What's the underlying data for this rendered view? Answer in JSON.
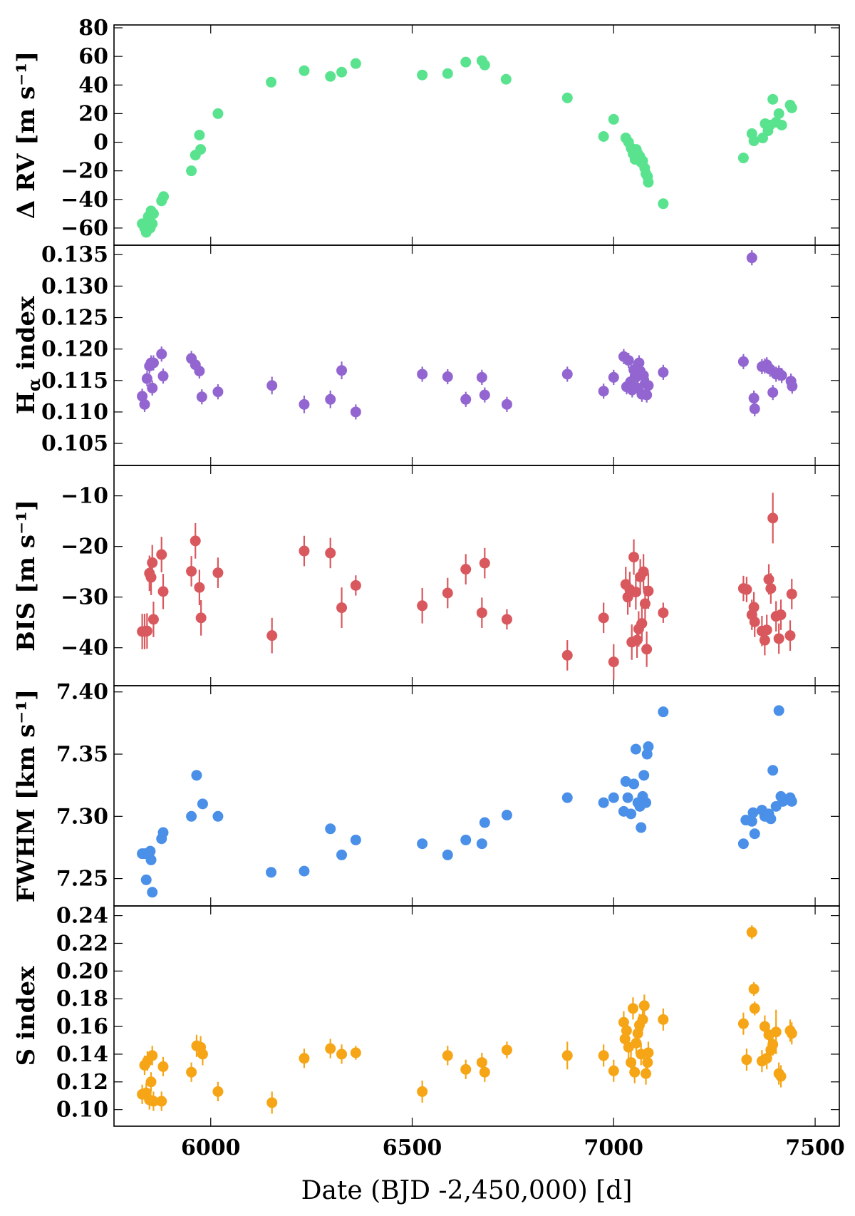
{
  "figure": {
    "xlabel": "Date (BJD -2,450,000) [d]",
    "xlim": [
      5760,
      7560
    ],
    "xticks": [
      6000,
      6500,
      7000,
      7500
    ]
  },
  "chart_data": [
    {
      "type": "scatter",
      "name": "rv",
      "ylabel": "Δ RV [m s⁻¹]",
      "ylim": [
        -72,
        82
      ],
      "yticks": [
        -60,
        -40,
        -20,
        0,
        20,
        40,
        60,
        80
      ],
      "ytick_labels": [
        "−60",
        "−40",
        "−20",
        "0",
        "20",
        "40",
        "60",
        "80"
      ],
      "color": "#5ae38f",
      "error_bars": false,
      "x": [
        5830,
        5836,
        5840,
        5843,
        5845,
        5848,
        5850,
        5852,
        5855,
        5858,
        5878,
        5883,
        5952,
        5962,
        5972,
        5975,
        6018,
        6150,
        6232,
        6297,
        6325,
        6360,
        6525,
        6588,
        6633,
        6673,
        6680,
        6733,
        6885,
        6975,
        7000,
        7030,
        7037,
        7043,
        7048,
        7053,
        7056,
        7060,
        7065,
        7068,
        7072,
        7077,
        7080,
        7084,
        7086,
        7123,
        7322,
        7343,
        7348,
        7370,
        7376,
        7383,
        7388,
        7395,
        7403,
        7410,
        7417,
        7438,
        7442
      ],
      "y": [
        -57,
        -60,
        -63,
        -58,
        -52,
        -55,
        -60,
        -48,
        -57,
        -50,
        -41,
        -38,
        -20,
        -9,
        5,
        -5,
        20,
        42,
        50,
        46,
        49,
        55,
        47,
        48,
        56,
        57,
        54,
        44,
        31,
        4,
        16,
        3,
        0,
        -4,
        -8,
        -12,
        -5,
        -8,
        -10,
        -14,
        -13,
        -18,
        -22,
        -24,
        -28,
        -43,
        -11,
        6,
        1,
        3,
        13,
        8,
        12,
        30,
        14,
        20,
        12,
        26,
        24
      ],
      "yerr": []
    },
    {
      "type": "scatter",
      "name": "halpha",
      "ylabel_main": "H",
      "ylabel_sub": "α",
      "ylabel_rest": " index",
      "ylim": [
        0.1015,
        0.1365
      ],
      "yticks": [
        0.105,
        0.11,
        0.115,
        0.12,
        0.125,
        0.13,
        0.135
      ],
      "ytick_labels": [
        "0.105",
        "0.110",
        "0.115",
        "0.120",
        "0.125",
        "0.130",
        "0.135"
      ],
      "color": "#9365d0",
      "error_bars": true,
      "x": [
        5830,
        5836,
        5842,
        5848,
        5852,
        5855,
        5858,
        5878,
        5882,
        5952,
        5962,
        5972,
        5978,
        6018,
        6152,
        6232,
        6297,
        6325,
        6360,
        6525,
        6588,
        6633,
        6673,
        6680,
        6735,
        6885,
        6975,
        7000,
        7025,
        7032,
        7037,
        7042,
        7046,
        7050,
        7055,
        7060,
        7063,
        7066,
        7070,
        7074,
        7078,
        7082,
        7086,
        7123,
        7322,
        7343,
        7350,
        7348,
        7368,
        7375,
        7380,
        7388,
        7395,
        7403,
        7410,
        7417,
        7440,
        7443
      ],
      "y": [
        0.1125,
        0.1112,
        0.1153,
        0.1173,
        0.1178,
        0.1138,
        0.1178,
        0.1192,
        0.1157,
        0.1185,
        0.1175,
        0.1165,
        0.1124,
        0.1132,
        0.1142,
        0.1112,
        0.112,
        0.1166,
        0.11,
        0.116,
        0.1156,
        0.112,
        0.1155,
        0.1127,
        0.1112,
        0.116,
        0.1133,
        0.1155,
        0.1188,
        0.114,
        0.1182,
        0.1148,
        0.1135,
        0.1167,
        0.1155,
        0.1138,
        0.1178,
        0.1165,
        0.1128,
        0.1158,
        0.1145,
        0.1127,
        0.1142,
        0.1163,
        0.118,
        0.1345,
        0.1105,
        0.1122,
        0.1172,
        0.1173,
        0.1175,
        0.1168,
        0.1131,
        0.116,
        0.1162,
        0.1158,
        0.1149,
        0.1141
      ],
      "yerr": [
        0.0012,
        0.0012,
        0.0012,
        0.0012,
        0.0012,
        0.0012,
        0.0012,
        0.0012,
        0.0012,
        0.0012,
        0.0012,
        0.0012,
        0.0012,
        0.0012,
        0.0014,
        0.0014,
        0.0014,
        0.0014,
        0.0012,
        0.0012,
        0.0012,
        0.0012,
        0.0012,
        0.0012,
        0.0012,
        0.0012,
        0.0012,
        0.0012,
        0.0012,
        0.0012,
        0.0012,
        0.0012,
        0.0012,
        0.0012,
        0.0012,
        0.0012,
        0.0012,
        0.0012,
        0.0012,
        0.0012,
        0.0012,
        0.0012,
        0.0012,
        0.0012,
        0.0012,
        0.0012,
        0.0012,
        0.0012,
        0.0012,
        0.0012,
        0.0012,
        0.0012,
        0.0012,
        0.0012,
        0.0012,
        0.0012,
        0.0012,
        0.0012
      ]
    },
    {
      "type": "scatter",
      "name": "bis",
      "ylabel": "BIS [m s⁻¹]",
      "ylim": [
        -47.5,
        -4
      ],
      "yticks": [
        -40,
        -30,
        -20,
        -10
      ],
      "ytick_labels": [
        "−40",
        "−30",
        "−20",
        "−10"
      ],
      "color": "#d9585e",
      "error_bars": true,
      "x": [
        5830,
        5836,
        5842,
        5848,
        5852,
        5855,
        5858,
        5878,
        5882,
        5952,
        5962,
        5972,
        5976,
        6018,
        6152,
        6232,
        6297,
        6325,
        6360,
        6525,
        6588,
        6633,
        6673,
        6680,
        6735,
        6885,
        6975,
        7000,
        7030,
        7035,
        7040,
        7045,
        7050,
        7055,
        7058,
        7062,
        7066,
        7070,
        7074,
        7078,
        7082,
        7086,
        7123,
        7322,
        7330,
        7343,
        7348,
        7350,
        7368,
        7375,
        7380,
        7385,
        7390,
        7395,
        7403,
        7410,
        7415,
        7438,
        7442
      ],
      "y": [
        -36.8,
        -36.8,
        -36.7,
        -25.3,
        -26.1,
        -23.2,
        -34.4,
        -21.6,
        -28.9,
        -24.9,
        -18.9,
        -28.1,
        -34.1,
        -25.2,
        -37.6,
        -20.9,
        -21.3,
        -32.1,
        -27.7,
        -31.7,
        -29.2,
        -24.5,
        -33.1,
        -23.3,
        -34.4,
        -41.5,
        -34.1,
        -42.8,
        -27.5,
        -30,
        -28.5,
        -38.9,
        -22.1,
        -29,
        -38.5,
        -36.3,
        -26,
        -35.2,
        -25,
        -31.3,
        -40.3,
        -28.8,
        -33.1,
        -28.3,
        -28.5,
        -33.5,
        -32,
        -34.9,
        -36.7,
        -38.5,
        -36.5,
        -26.5,
        -28.3,
        -14.4,
        -33.8,
        -38.2,
        -33.5,
        -37.6,
        -29.4
      ],
      "yerr": [
        3.5,
        3.5,
        3.5,
        3.5,
        3.5,
        3.5,
        3.5,
        3.5,
        3.5,
        3,
        3.5,
        3.5,
        3.5,
        3,
        3.5,
        3,
        3,
        4,
        2,
        3.5,
        3,
        3,
        3,
        3,
        2,
        3,
        3,
        3.5,
        3.5,
        3.5,
        3.5,
        3.5,
        3.5,
        3.5,
        3.5,
        3.5,
        3.5,
        3.5,
        3.5,
        3.5,
        3.5,
        3.5,
        2,
        2.5,
        2.5,
        3,
        3,
        3,
        3,
        3,
        3,
        3,
        3,
        5,
        3,
        3,
        3,
        3,
        3
      ]
    },
    {
      "type": "scatter",
      "name": "fwhm",
      "ylabel": "FWHM [km s⁻¹]",
      "ylim": [
        7.228,
        7.405
      ],
      "yticks": [
        7.25,
        7.3,
        7.35,
        7.4
      ],
      "ytick_labels": [
        "7.25",
        "7.30",
        "7.35",
        "7.40"
      ],
      "color": "#4a8fe8",
      "error_bars": false,
      "x": [
        5830,
        5836,
        5840,
        5845,
        5850,
        5852,
        5855,
        5878,
        5882,
        5952,
        5965,
        5980,
        6018,
        6150,
        6232,
        6297,
        6325,
        6360,
        6525,
        6588,
        6633,
        6673,
        6680,
        6735,
        6885,
        6975,
        7000,
        7025,
        7030,
        7035,
        7043,
        7050,
        7055,
        7060,
        7065,
        7068,
        7072,
        7075,
        7080,
        7083,
        7086,
        7123,
        7322,
        7328,
        7343,
        7346,
        7350,
        7368,
        7375,
        7380,
        7385,
        7390,
        7395,
        7403,
        7410,
        7415,
        7420,
        7438,
        7442
      ],
      "y": [
        7.27,
        7.27,
        7.249,
        7.27,
        7.272,
        7.265,
        7.239,
        7.282,
        7.287,
        7.3,
        7.333,
        7.31,
        7.3,
        7.255,
        7.256,
        7.29,
        7.269,
        7.281,
        7.278,
        7.269,
        7.281,
        7.278,
        7.295,
        7.301,
        7.315,
        7.311,
        7.315,
        7.304,
        7.328,
        7.315,
        7.302,
        7.326,
        7.354,
        7.311,
        7.308,
        7.291,
        7.316,
        7.333,
        7.311,
        7.35,
        7.356,
        7.384,
        7.278,
        7.297,
        7.296,
        7.303,
        7.286,
        7.305,
        7.3,
        7.3,
        7.302,
        7.298,
        7.337,
        7.308,
        7.385,
        7.316,
        7.312,
        7.315,
        7.312
      ],
      "yerr": []
    },
    {
      "type": "scatter",
      "name": "sindex",
      "ylabel": "S index",
      "ylim": [
        0.088,
        0.247
      ],
      "yticks": [
        0.1,
        0.12,
        0.14,
        0.16,
        0.18,
        0.2,
        0.22,
        0.24
      ],
      "ytick_labels": [
        "0.10",
        "0.12",
        "0.14",
        "0.16",
        "0.18",
        "0.20",
        "0.22",
        "0.24"
      ],
      "color": "#f5a515",
      "error_bars": true,
      "x": [
        5830,
        5836,
        5840,
        5843,
        5848,
        5852,
        5855,
        5858,
        5878,
        5882,
        5952,
        5965,
        5975,
        5980,
        6018,
        6152,
        6232,
        6297,
        6325,
        6360,
        6525,
        6588,
        6633,
        6673,
        6680,
        6735,
        6885,
        6975,
        7000,
        7025,
        7028,
        7032,
        7037,
        7043,
        7048,
        7052,
        7056,
        7060,
        7064,
        7068,
        7072,
        7076,
        7080,
        7084,
        7086,
        7123,
        7322,
        7330,
        7343,
        7348,
        7350,
        7368,
        7375,
        7380,
        7385,
        7390,
        7395,
        7403,
        7410,
        7415,
        7438,
        7442
      ],
      "y": [
        0.111,
        0.132,
        0.112,
        0.135,
        0.107,
        0.12,
        0.139,
        0.106,
        0.106,
        0.131,
        0.127,
        0.146,
        0.145,
        0.14,
        0.113,
        0.105,
        0.137,
        0.144,
        0.14,
        0.141,
        0.113,
        0.139,
        0.129,
        0.134,
        0.127,
        0.143,
        0.139,
        0.139,
        0.128,
        0.163,
        0.151,
        0.157,
        0.145,
        0.134,
        0.173,
        0.127,
        0.148,
        0.155,
        0.161,
        0.14,
        0.165,
        0.175,
        0.126,
        0.134,
        0.141,
        0.165,
        0.162,
        0.136,
        0.228,
        0.187,
        0.173,
        0.135,
        0.16,
        0.137,
        0.154,
        0.143,
        0.147,
        0.156,
        0.126,
        0.124,
        0.157,
        0.155
      ],
      "yerr": [
        0.007,
        0.007,
        0.007,
        0.007,
        0.007,
        0.007,
        0.007,
        0.007,
        0.007,
        0.007,
        0.007,
        0.008,
        0.008,
        0.008,
        0.007,
        0.008,
        0.007,
        0.007,
        0.007,
        0.005,
        0.008,
        0.007,
        0.007,
        0.007,
        0.007,
        0.006,
        0.01,
        0.008,
        0.008,
        0.008,
        0.008,
        0.008,
        0.008,
        0.008,
        0.008,
        0.008,
        0.008,
        0.008,
        0.008,
        0.008,
        0.008,
        0.008,
        0.008,
        0.008,
        0.008,
        0.008,
        0.008,
        0.008,
        0.005,
        0.005,
        0.005,
        0.008,
        0.008,
        0.008,
        0.008,
        0.008,
        0.008,
        0.016,
        0.008,
        0.008,
        0.008,
        0.008
      ]
    }
  ]
}
